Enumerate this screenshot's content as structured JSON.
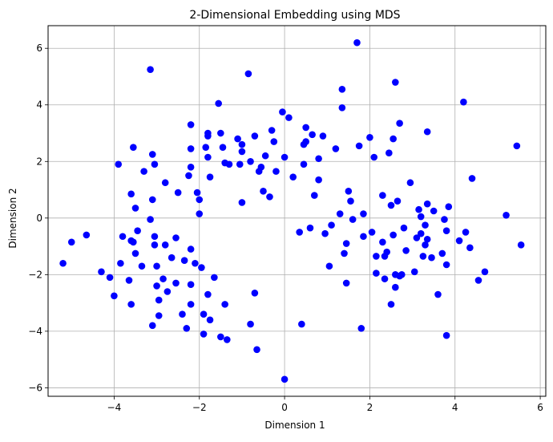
{
  "chart_data": {
    "type": "scatter",
    "title": "2-Dimensional Embedding using MDS",
    "xlabel": "Dimension 1",
    "ylabel": "Dimension 2",
    "xlim": [
      -5.55,
      6.13
    ],
    "ylim": [
      -6.3,
      6.8
    ],
    "xticks": [
      -4,
      -2,
      0,
      2,
      4,
      6
    ],
    "yticks": [
      -6,
      -4,
      -2,
      0,
      2,
      4,
      6
    ],
    "grid": true,
    "marker_color": "#0000ff",
    "points": [
      [
        -5.2,
        -1.6
      ],
      [
        -5.0,
        -0.85
      ],
      [
        -4.65,
        -0.6
      ],
      [
        -4.3,
        -1.9
      ],
      [
        -4.1,
        -2.1
      ],
      [
        -4.0,
        -2.75
      ],
      [
        -3.9,
        1.9
      ],
      [
        -3.85,
        -1.6
      ],
      [
        -3.8,
        -0.65
      ],
      [
        -3.65,
        -2.2
      ],
      [
        -3.6,
        -0.8
      ],
      [
        -3.55,
        -0.85
      ],
      [
        -3.5,
        0.35
      ],
      [
        -3.5,
        -1.25
      ],
      [
        -3.45,
        -0.45
      ],
      [
        -3.6,
        -3.05
      ],
      [
        -3.6,
        0.85
      ],
      [
        -3.55,
        2.5
      ],
      [
        -3.35,
        -1.7
      ],
      [
        -3.3,
        1.65
      ],
      [
        -3.15,
        5.25
      ],
      [
        -3.15,
        -0.05
      ],
      [
        -3.1,
        2.25
      ],
      [
        -3.05,
        1.9
      ],
      [
        -3.05,
        -0.65
      ],
      [
        -3.05,
        -0.95
      ],
      [
        -3.1,
        0.65
      ],
      [
        -3.0,
        -1.7
      ],
      [
        -3.0,
        -2.4
      ],
      [
        -2.95,
        -2.9
      ],
      [
        -2.95,
        -3.45
      ],
      [
        -3.1,
        -3.8
      ],
      [
        -2.85,
        -2.15
      ],
      [
        -2.8,
        1.25
      ],
      [
        -2.8,
        -0.95
      ],
      [
        -2.75,
        -2.6
      ],
      [
        -2.65,
        -1.4
      ],
      [
        -2.55,
        -2.3
      ],
      [
        -2.55,
        -0.7
      ],
      [
        -2.5,
        0.9
      ],
      [
        -2.4,
        -3.4
      ],
      [
        -2.35,
        -1.5
      ],
      [
        -2.3,
        -3.9
      ],
      [
        -2.25,
        1.5
      ],
      [
        -2.2,
        2.45
      ],
      [
        -2.2,
        3.3
      ],
      [
        -2.2,
        1.8
      ],
      [
        -2.2,
        -1.1
      ],
      [
        -2.2,
        -2.35
      ],
      [
        -2.2,
        -3.05
      ],
      [
        -2.1,
        -1.6
      ],
      [
        -2.05,
        0.9
      ],
      [
        -2.0,
        0.15
      ],
      [
        -2.0,
        0.65
      ],
      [
        -1.95,
        -1.75
      ],
      [
        -1.9,
        -3.4
      ],
      [
        -1.9,
        -4.1
      ],
      [
        -1.85,
        2.5
      ],
      [
        -1.8,
        2.9
      ],
      [
        -1.8,
        3.0
      ],
      [
        -1.8,
        2.15
      ],
      [
        -1.8,
        -2.7
      ],
      [
        -1.75,
        1.45
      ],
      [
        -1.75,
        -3.6
      ],
      [
        -1.65,
        -2.1
      ],
      [
        -1.55,
        4.05
      ],
      [
        -1.5,
        3.0
      ],
      [
        -1.5,
        -4.2
      ],
      [
        -1.45,
        2.5
      ],
      [
        -1.4,
        1.95
      ],
      [
        -1.4,
        -3.05
      ],
      [
        -1.35,
        -4.3
      ],
      [
        -1.3,
        1.9
      ],
      [
        -1.1,
        2.8
      ],
      [
        -1.05,
        1.9
      ],
      [
        -1.0,
        2.35
      ],
      [
        -1.0,
        2.6
      ],
      [
        -1.0,
        0.55
      ],
      [
        -0.85,
        5.1
      ],
      [
        -0.8,
        2.0
      ],
      [
        -0.8,
        -3.75
      ],
      [
        -0.7,
        2.9
      ],
      [
        -0.7,
        -2.65
      ],
      [
        -0.65,
        -4.65
      ],
      [
        -0.6,
        1.65
      ],
      [
        -0.55,
        1.8
      ],
      [
        -0.5,
        0.95
      ],
      [
        -0.45,
        2.2
      ],
      [
        -0.35,
        0.75
      ],
      [
        -0.3,
        3.1
      ],
      [
        -0.25,
        2.7
      ],
      [
        -0.2,
        1.65
      ],
      [
        -0.05,
        3.75
      ],
      [
        0.0,
        2.15
      ],
      [
        0.0,
        -5.7
      ],
      [
        0.1,
        3.55
      ],
      [
        0.2,
        1.45
      ],
      [
        0.35,
        -0.5
      ],
      [
        0.4,
        -3.75
      ],
      [
        0.45,
        2.6
      ],
      [
        0.45,
        1.9
      ],
      [
        0.5,
        3.2
      ],
      [
        0.5,
        2.7
      ],
      [
        0.6,
        -0.35
      ],
      [
        0.65,
        2.95
      ],
      [
        0.7,
        0.8
      ],
      [
        0.8,
        2.1
      ],
      [
        0.8,
        1.35
      ],
      [
        0.9,
        2.9
      ],
      [
        0.95,
        -0.55
      ],
      [
        1.05,
        -1.7
      ],
      [
        1.1,
        -0.25
      ],
      [
        1.2,
        2.45
      ],
      [
        1.3,
        0.15
      ],
      [
        1.35,
        4.55
      ],
      [
        1.35,
        3.9
      ],
      [
        1.4,
        -1.25
      ],
      [
        1.45,
        -0.9
      ],
      [
        1.45,
        -2.3
      ],
      [
        1.5,
        0.95
      ],
      [
        1.55,
        0.6
      ],
      [
        1.6,
        -0.05
      ],
      [
        1.7,
        6.2
      ],
      [
        1.75,
        2.55
      ],
      [
        1.8,
        -3.9
      ],
      [
        1.85,
        0.15
      ],
      [
        1.85,
        -0.65
      ],
      [
        2.0,
        2.85
      ],
      [
        2.05,
        -0.5
      ],
      [
        2.1,
        2.15
      ],
      [
        2.15,
        -1.95
      ],
      [
        2.15,
        -1.35
      ],
      [
        2.3,
        -0.85
      ],
      [
        2.3,
        0.8
      ],
      [
        2.35,
        -2.15
      ],
      [
        2.35,
        -1.35
      ],
      [
        2.4,
        -1.2
      ],
      [
        2.45,
        2.3
      ],
      [
        2.5,
        -3.05
      ],
      [
        2.5,
        0.45
      ],
      [
        2.55,
        2.8
      ],
      [
        2.55,
        -0.6
      ],
      [
        2.6,
        4.8
      ],
      [
        2.6,
        -2.0
      ],
      [
        2.6,
        -2.45
      ],
      [
        2.65,
        0.6
      ],
      [
        2.7,
        3.35
      ],
      [
        2.7,
        -2.05
      ],
      [
        2.75,
        -2.0
      ],
      [
        2.8,
        -0.35
      ],
      [
        2.85,
        -1.15
      ],
      [
        2.95,
        1.25
      ],
      [
        3.05,
        -1.9
      ],
      [
        3.1,
        -0.7
      ],
      [
        3.15,
        0.3
      ],
      [
        3.2,
        -0.55
      ],
      [
        3.2,
        0.05
      ],
      [
        3.25,
        -1.35
      ],
      [
        3.3,
        -0.95
      ],
      [
        3.3,
        -0.25
      ],
      [
        3.35,
        3.05
      ],
      [
        3.35,
        0.5
      ],
      [
        3.35,
        -0.75
      ],
      [
        3.45,
        -1.4
      ],
      [
        3.5,
        0.25
      ],
      [
        3.6,
        -2.7
      ],
      [
        3.7,
        -1.25
      ],
      [
        3.75,
        -0.05
      ],
      [
        3.8,
        -4.15
      ],
      [
        3.8,
        -0.45
      ],
      [
        3.8,
        -1.65
      ],
      [
        3.85,
        0.4
      ],
      [
        4.1,
        -0.8
      ],
      [
        4.2,
        4.1
      ],
      [
        4.25,
        -0.5
      ],
      [
        4.35,
        -1.05
      ],
      [
        4.4,
        1.4
      ],
      [
        4.55,
        -2.2
      ],
      [
        4.7,
        -1.9
      ],
      [
        5.2,
        0.1
      ],
      [
        5.45,
        2.55
      ],
      [
        5.55,
        -0.95
      ]
    ]
  }
}
